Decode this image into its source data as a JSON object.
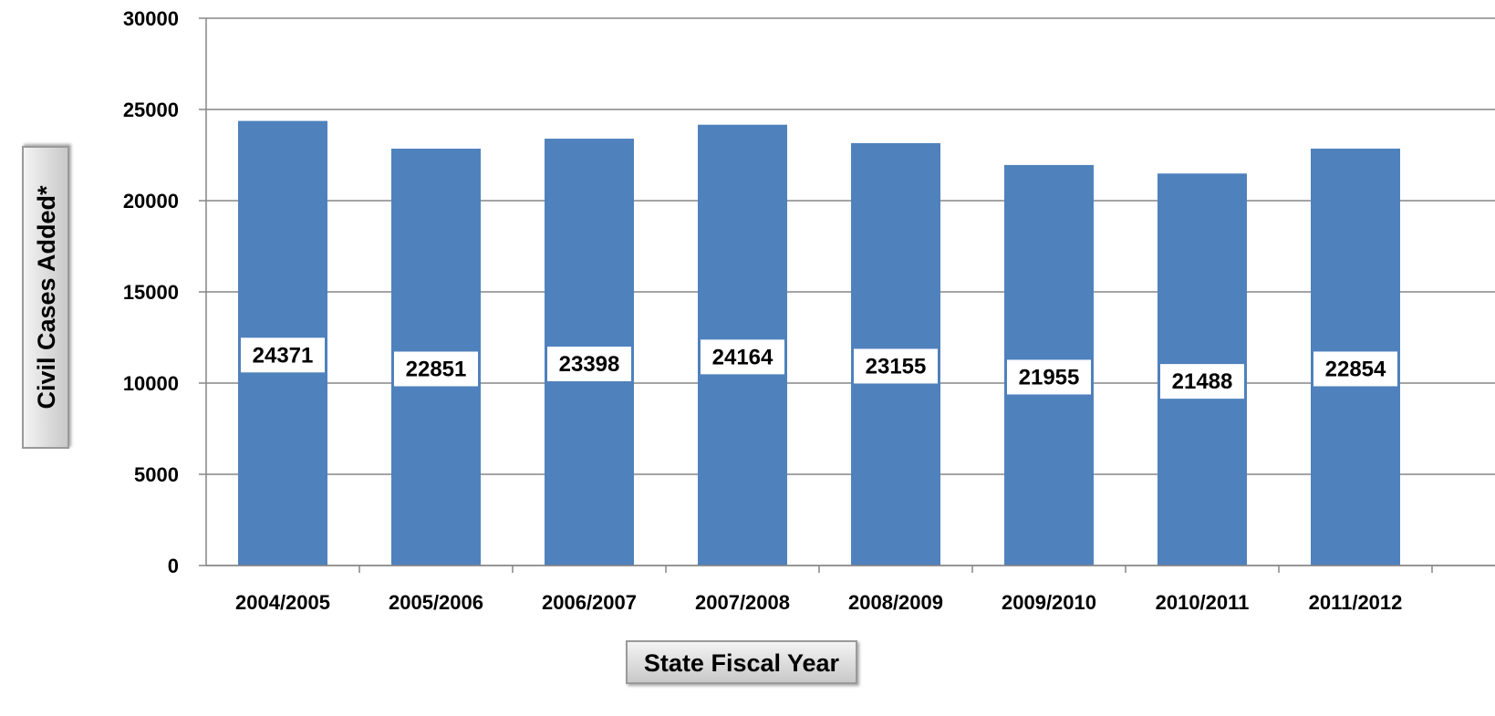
{
  "chart_data": {
    "type": "bar",
    "title": "",
    "xlabel": "State Fiscal Year",
    "ylabel": "Civil Cases Added*",
    "categories": [
      "2004/2005",
      "2005/2006",
      "2006/2007",
      "2007/2008",
      "2008/2009",
      "2009/2010",
      "2010/2011",
      "2011/2012"
    ],
    "values": [
      24371,
      22851,
      23398,
      24164,
      23155,
      21955,
      21488,
      22854
    ],
    "ylim": [
      0,
      30000
    ],
    "yticks": [
      0,
      5000,
      10000,
      15000,
      20000,
      25000,
      30000
    ],
    "grid": true,
    "legend": "none",
    "bar_color": "#4f81bd",
    "data_labels": true
  }
}
